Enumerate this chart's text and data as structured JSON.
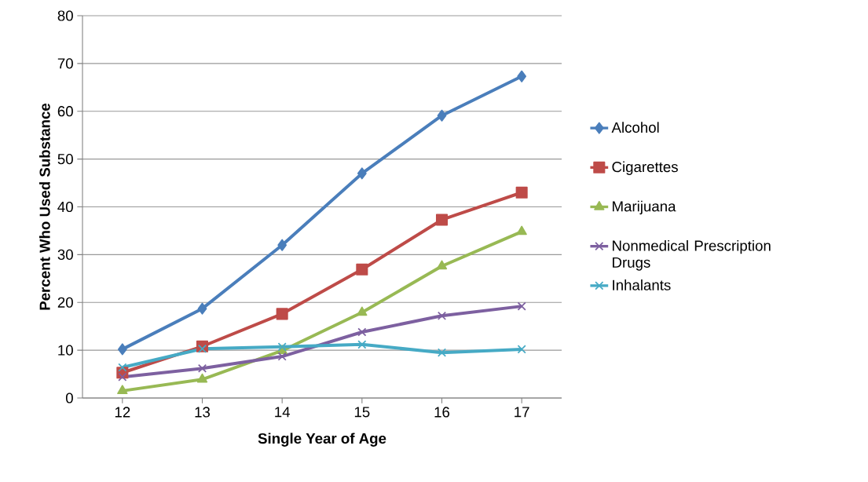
{
  "chart_data": {
    "type": "line",
    "xlabel": "Single Year of Age",
    "ylabel": "Percent Who Used  Substance",
    "categories": [
      "12",
      "13",
      "14",
      "15",
      "16",
      "17"
    ],
    "series": [
      {
        "name": "Alcohol",
        "color": "#4a7ebb",
        "marker": "diamond",
        "values": [
          10.2,
          18.7,
          32.0,
          47.0,
          59.1,
          67.3
        ]
      },
      {
        "name": "Cigarettes",
        "color": "#be4b48",
        "marker": "square",
        "values": [
          5.3,
          10.8,
          17.6,
          26.9,
          37.3,
          43.0
        ]
      },
      {
        "name": "Marijuana",
        "color": "#98b954",
        "marker": "triangle",
        "values": [
          1.5,
          3.9,
          9.9,
          17.9,
          27.6,
          34.8
        ]
      },
      {
        "name": "Nonmedical Prescription Drugs",
        "color": "#7d60a0",
        "marker": "cross",
        "values": [
          4.4,
          6.2,
          8.7,
          13.8,
          17.2,
          19.2
        ]
      },
      {
        "name": "Inhalants",
        "color": "#46aac5",
        "marker": "cross",
        "values": [
          6.4,
          10.3,
          10.7,
          11.2,
          9.5,
          10.2
        ]
      }
    ],
    "ylim": [
      0,
      80
    ],
    "yticks": [
      0,
      10,
      20,
      30,
      40,
      50,
      60,
      70,
      80
    ],
    "grid": "y",
    "legend": "right",
    "line_style": "solid"
  }
}
